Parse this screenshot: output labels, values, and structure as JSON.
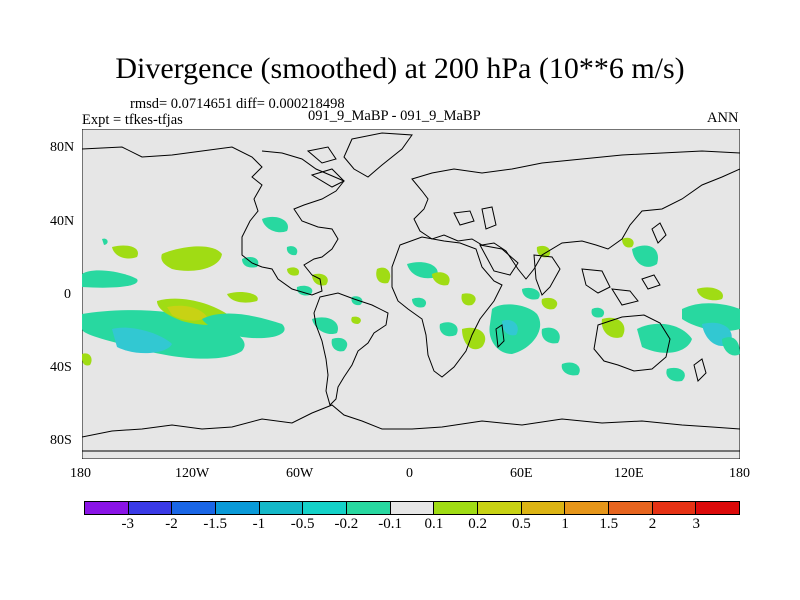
{
  "title": "Divergence (smoothed) at 200 hPa (10**6 m/s)",
  "stats": "rmsd= 0.0714651 diff= 0.000218498",
  "case": "091_9_MaBP - 091_9_MaBP",
  "expt": "Expt = tfkes-tfjas",
  "season": "ANN",
  "lat_ticks": [
    "80N",
    "40N",
    "0",
    "40S",
    "80S"
  ],
  "lon_ticks": [
    "180",
    "120W",
    "60W",
    "0",
    "60E",
    "120E",
    "180"
  ],
  "colorbar": {
    "labels": [
      "-3",
      "-2",
      "-1.5",
      "-1",
      "-0.5",
      "-0.2",
      "-0.1",
      "0.1",
      "0.2",
      "0.5",
      "1",
      "1.5",
      "2",
      "3"
    ],
    "colors": [
      "#8a14e6",
      "#3a3ae6",
      "#1a66e6",
      "#0a9ad8",
      "#14b8c8",
      "#14d2c8",
      "#28d8a0",
      "#e6e6e6",
      "#a0dc14",
      "#c8d214",
      "#dcb414",
      "#e6961a",
      "#e6641e",
      "#e63214",
      "#dc0a0a"
    ]
  },
  "colors": {
    "land_bg": "#e6e6e6",
    "cyan_contour": "#1ed2aa",
    "green_contour": "#a0dc14",
    "yellow_contour": "#c8d214",
    "blue_contour": "#32c8d2"
  }
}
